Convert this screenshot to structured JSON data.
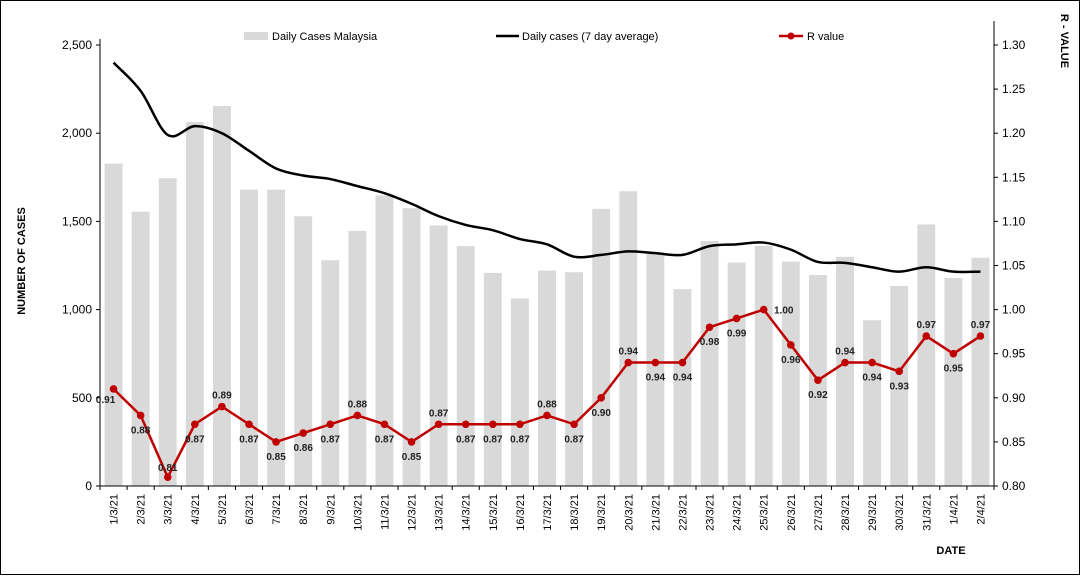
{
  "chart_data": {
    "type": "bar+line",
    "categories": [
      "1/3/21",
      "2/3/21",
      "3/3/21",
      "4/3/21",
      "5/3/21",
      "6/3/21",
      "7/3/21",
      "8/3/21",
      "9/3/21",
      "10/3/21",
      "11/3/21",
      "12/3/21",
      "13/3/21",
      "14/3/21",
      "15/3/21",
      "16/3/21",
      "17/3/21",
      "18/3/21",
      "19/3/21",
      "20/3/21",
      "21/3/21",
      "22/3/21",
      "23/3/21",
      "24/3/21",
      "25/3/21",
      "26/3/21",
      "27/3/21",
      "28/3/21",
      "29/3/21",
      "30/3/21",
      "31/3/21",
      "1/4/21",
      "2/4/21"
    ],
    "series": [
      {
        "name": "Daily Cases Malaysia",
        "kind": "bar",
        "axis": "left",
        "color": "#d9d9d9",
        "values": [
          1828,
          1555,
          1745,
          2063,
          2154,
          1680,
          1680,
          1529,
          1280,
          1446,
          1648,
          1575,
          1477,
          1360,
          1208,
          1063,
          1221,
          1212,
          1571,
          1671,
          1320,
          1116,
          1389,
          1267,
          1361,
          1272,
          1196,
          1299,
          940,
          1134,
          1483,
          1179,
          1294
        ]
      },
      {
        "name": "Daily cases (7 day average)",
        "kind": "line",
        "axis": "left",
        "color": "#000000",
        "values": [
          2400,
          2240,
          1990,
          2040,
          2000,
          1900,
          1800,
          1760,
          1740,
          1700,
          1660,
          1600,
          1530,
          1480,
          1450,
          1400,
          1370,
          1300,
          1310,
          1330,
          1320,
          1310,
          1360,
          1370,
          1380,
          1340,
          1270,
          1265,
          1240,
          1215,
          1240,
          1215,
          1215
        ]
      },
      {
        "name": "R value",
        "kind": "line-marker",
        "axis": "right",
        "color": "#c00000",
        "values": [
          0.91,
          0.88,
          0.81,
          0.87,
          0.89,
          0.87,
          0.85,
          0.86,
          0.87,
          0.88,
          0.87,
          0.85,
          0.87,
          0.87,
          0.87,
          0.87,
          0.88,
          0.87,
          0.9,
          0.94,
          0.94,
          0.94,
          0.98,
          0.99,
          1.0,
          0.96,
          0.92,
          0.94,
          0.94,
          0.93,
          0.97,
          0.95,
          0.97
        ],
        "labels": [
          "0.91",
          "0.88",
          "0.81",
          "0.87",
          "0.89",
          "0.87",
          "0.85",
          "0.86",
          "0.87",
          "0.88",
          "0.87",
          "0.85",
          "0.87",
          "0.87",
          "0.87",
          "0.87",
          "0.88",
          "0.87",
          "0.90",
          "0.94",
          "0.94",
          "0.94",
          "0.98",
          "0.99",
          "1.00",
          "0.96",
          "0.92",
          "0.94",
          "0.94",
          "0.93",
          "0.97",
          "0.95",
          "0.97"
        ]
      }
    ],
    "left_axis": {
      "title": "NUMBER OF CASES",
      "min": 0,
      "max": 2500,
      "ticks": [
        "0",
        "500",
        "1,000",
        "1,500",
        "2,000",
        "2,500"
      ],
      "tick_values": [
        0,
        500,
        1000,
        1500,
        2000,
        2500
      ]
    },
    "right_axis": {
      "title": "R - VALUE",
      "min": 0.8,
      "max": 1.3,
      "ticks": [
        "0.80",
        "0.85",
        "0.90",
        "0.95",
        "1.00",
        "1.05",
        "1.10",
        "1.15",
        "1.20",
        "1.25",
        "1.30"
      ],
      "tick_values": [
        0.8,
        0.85,
        0.9,
        0.95,
        1.0,
        1.05,
        1.1,
        1.15,
        1.2,
        1.25,
        1.3
      ]
    },
    "xlabel": "DATE",
    "legend": [
      "Daily Cases Malaysia",
      "Daily cases (7 day average)",
      "R value"
    ],
    "legend_position": "top",
    "grid": false
  }
}
